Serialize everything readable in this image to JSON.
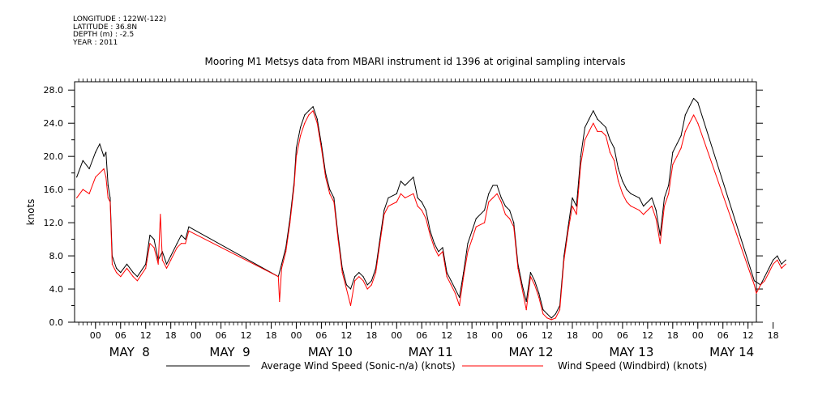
{
  "meta": {
    "longitude": "LONGITUDE : 122W(-122)",
    "latitude": "LATITUDE : 36.8N",
    "depth": "DEPTH (m) : -2.5",
    "year": "YEAR : 2011"
  },
  "chart_data": {
    "type": "line",
    "title": "Mooring M1 Metsys data from MBARI instrument id 1396 at original sampling intervals",
    "xlabel": "",
    "ylabel": "knots",
    "ylim": [
      0,
      29
    ],
    "y_ticks": [
      "0.0",
      "4.0",
      "8.0",
      "12.0",
      "16.0",
      "20.0",
      "24.0",
      "28.0"
    ],
    "x_range_hours": [
      -5,
      158
    ],
    "hour_ticks": [
      "00",
      "06",
      "12",
      "18",
      "00",
      "06",
      "12",
      "18",
      "00",
      "06",
      "12",
      "18",
      "00",
      "06",
      "12",
      "18",
      "00",
      "06",
      "12",
      "18",
      "00",
      "06",
      "12",
      "18",
      "00",
      "06",
      "12",
      "18"
    ],
    "day_labels": [
      "MAY  8",
      "MAY  9",
      "MAY 10",
      "MAY 11",
      "MAY 12",
      "MAY 13",
      "MAY 14"
    ],
    "grid": false,
    "legend_position": "bottom",
    "series": [
      {
        "name": "Average Wind Speed (Sonic-n/a) (knots)",
        "color": "#000000",
        "points": [
          [
            -4.5,
            17.5
          ],
          [
            -3,
            19.5
          ],
          [
            -1.5,
            18.5
          ],
          [
            0,
            20.5
          ],
          [
            1,
            21.5
          ],
          [
            2,
            20.0
          ],
          [
            2.5,
            20.5
          ],
          [
            3,
            16.5
          ],
          [
            3.5,
            15.0
          ],
          [
            4,
            8.0
          ],
          [
            5,
            6.5
          ],
          [
            6,
            6.0
          ],
          [
            7.5,
            7.0
          ],
          [
            9,
            6.0
          ],
          [
            10,
            5.5
          ],
          [
            12,
            7.0
          ],
          [
            13,
            10.5
          ],
          [
            14,
            10.0
          ],
          [
            15,
            7.5
          ],
          [
            16,
            8.5
          ],
          [
            17,
            7.0
          ],
          [
            18,
            8.0
          ],
          [
            19.5,
            9.5
          ],
          [
            20.5,
            10.5
          ],
          [
            21.5,
            10.0
          ],
          [
            22.3,
            11.5
          ],
          [
            43.7,
            5.5
          ],
          [
            44.5,
            7.0
          ],
          [
            45.5,
            9.0
          ],
          [
            46.5,
            12.5
          ],
          [
            47.5,
            17.0
          ],
          [
            48,
            21.0
          ],
          [
            49,
            23.5
          ],
          [
            50,
            25.0
          ],
          [
            51,
            25.5
          ],
          [
            52,
            26.0
          ],
          [
            53,
            24.5
          ],
          [
            54,
            21.5
          ],
          [
            55,
            18.0
          ],
          [
            56,
            16.0
          ],
          [
            57,
            15.0
          ],
          [
            58,
            10.5
          ],
          [
            59,
            6.5
          ],
          [
            60,
            4.5
          ],
          [
            61,
            4.0
          ],
          [
            62,
            5.5
          ],
          [
            63,
            6.0
          ],
          [
            64,
            5.5
          ],
          [
            65,
            4.5
          ],
          [
            66,
            5.0
          ],
          [
            67,
            6.5
          ],
          [
            68,
            10.0
          ],
          [
            69,
            13.5
          ],
          [
            70,
            15.0
          ],
          [
            72,
            15.5
          ],
          [
            73,
            17.0
          ],
          [
            74,
            16.5
          ],
          [
            76,
            17.5
          ],
          [
            77,
            15.0
          ],
          [
            78,
            14.5
          ],
          [
            79,
            13.5
          ],
          [
            80,
            11.0
          ],
          [
            81,
            9.5
          ],
          [
            82,
            8.5
          ],
          [
            83,
            9.0
          ],
          [
            84,
            6.0
          ],
          [
            85,
            5.0
          ],
          [
            86,
            4.0
          ],
          [
            87,
            3.0
          ],
          [
            88,
            6.0
          ],
          [
            89,
            9.5
          ],
          [
            90,
            11.0
          ],
          [
            91,
            12.5
          ],
          [
            93,
            13.5
          ],
          [
            94,
            15.5
          ],
          [
            95,
            16.5
          ],
          [
            96,
            16.5
          ],
          [
            97,
            15.0
          ],
          [
            98,
            14.0
          ],
          [
            99,
            13.5
          ],
          [
            100,
            12.0
          ],
          [
            101,
            7.0
          ],
          [
            102,
            4.5
          ],
          [
            103,
            2.5
          ],
          [
            104,
            6.0
          ],
          [
            105,
            5.0
          ],
          [
            106,
            3.5
          ],
          [
            107,
            1.5
          ],
          [
            108,
            1.0
          ],
          [
            109,
            0.5
          ],
          [
            110,
            1.0
          ],
          [
            111,
            2.0
          ],
          [
            112,
            8.0
          ],
          [
            113,
            11.5
          ],
          [
            114,
            15.0
          ],
          [
            115,
            14.0
          ],
          [
            116,
            20.0
          ],
          [
            117,
            23.5
          ],
          [
            118,
            24.5
          ],
          [
            119,
            25.5
          ],
          [
            120,
            24.5
          ],
          [
            121,
            24.0
          ],
          [
            122,
            23.5
          ],
          [
            123,
            22.0
          ],
          [
            124,
            21.0
          ],
          [
            125,
            18.5
          ],
          [
            126,
            17.0
          ],
          [
            127,
            16.0
          ],
          [
            128,
            15.5
          ],
          [
            130,
            15.0
          ],
          [
            131,
            14.0
          ],
          [
            133,
            15.0
          ],
          [
            134,
            13.5
          ],
          [
            135,
            10.5
          ],
          [
            136,
            15.0
          ],
          [
            137,
            16.5
          ],
          [
            138,
            20.5
          ],
          [
            139,
            21.5
          ],
          [
            140,
            22.5
          ],
          [
            141,
            25.0
          ],
          [
            142,
            26.0
          ],
          [
            143,
            27.0
          ],
          [
            144,
            26.5
          ],
          [
            157.5,
            5.0
          ],
          [
            159,
            4.5
          ],
          [
            160,
            5.5
          ],
          [
            161,
            6.5
          ],
          [
            162,
            7.5
          ],
          [
            163,
            8.0
          ],
          [
            164,
            7.0
          ],
          [
            165,
            7.5
          ]
        ]
      },
      {
        "name": "Wind Speed (Windbird) (knots)",
        "color": "#ff0000",
        "points": [
          [
            -4.5,
            15.0
          ],
          [
            -3,
            16.0
          ],
          [
            -1.5,
            15.5
          ],
          [
            0,
            17.5
          ],
          [
            1,
            18.0
          ],
          [
            2,
            18.5
          ],
          [
            2.5,
            17.5
          ],
          [
            3,
            15.0
          ],
          [
            3.5,
            14.5
          ],
          [
            4,
            7.0
          ],
          [
            5,
            6.0
          ],
          [
            6,
            5.5
          ],
          [
            7.5,
            6.5
          ],
          [
            9,
            5.5
          ],
          [
            10,
            5.0
          ],
          [
            12,
            6.5
          ],
          [
            13,
            9.5
          ],
          [
            14,
            9.0
          ],
          [
            15,
            7.0
          ],
          [
            15.5,
            13.0
          ],
          [
            16,
            7.5
          ],
          [
            17,
            6.5
          ],
          [
            18,
            7.5
          ],
          [
            19.5,
            9.0
          ],
          [
            20.5,
            9.5
          ],
          [
            21.5,
            9.5
          ],
          [
            22.3,
            11.0
          ],
          [
            43.7,
            5.5
          ],
          [
            44.0,
            2.5
          ],
          [
            44.5,
            6.5
          ],
          [
            45.5,
            8.5
          ],
          [
            46.5,
            12.0
          ],
          [
            47.5,
            16.5
          ],
          [
            48,
            20.0
          ],
          [
            49,
            22.5
          ],
          [
            50,
            24.0
          ],
          [
            51,
            25.0
          ],
          [
            52,
            25.5
          ],
          [
            53,
            24.0
          ],
          [
            54,
            21.0
          ],
          [
            55,
            17.5
          ],
          [
            56,
            15.5
          ],
          [
            57,
            14.5
          ],
          [
            58,
            10.0
          ],
          [
            59,
            6.0
          ],
          [
            60,
            4.0
          ],
          [
            61,
            2.0
          ],
          [
            62,
            5.0
          ],
          [
            63,
            5.5
          ],
          [
            64,
            5.0
          ],
          [
            65,
            4.0
          ],
          [
            66,
            4.5
          ],
          [
            67,
            6.0
          ],
          [
            68,
            9.5
          ],
          [
            69,
            13.0
          ],
          [
            70,
            14.0
          ],
          [
            72,
            14.5
          ],
          [
            73,
            15.5
          ],
          [
            74,
            15.0
          ],
          [
            76,
            15.5
          ],
          [
            77,
            14.0
          ],
          [
            78,
            13.5
          ],
          [
            79,
            12.5
          ],
          [
            80,
            10.5
          ],
          [
            81,
            9.0
          ],
          [
            82,
            8.0
          ],
          [
            83,
            8.5
          ],
          [
            84,
            5.5
          ],
          [
            85,
            4.5
          ],
          [
            86,
            3.5
          ],
          [
            87,
            2.0
          ],
          [
            88,
            5.5
          ],
          [
            89,
            8.5
          ],
          [
            90,
            10.0
          ],
          [
            91,
            11.5
          ],
          [
            93,
            12.0
          ],
          [
            94,
            14.5
          ],
          [
            95,
            15.0
          ],
          [
            96,
            15.5
          ],
          [
            97,
            14.5
          ],
          [
            98,
            13.0
          ],
          [
            99,
            12.5
          ],
          [
            100,
            11.5
          ],
          [
            101,
            6.5
          ],
          [
            102,
            4.0
          ],
          [
            103,
            1.5
          ],
          [
            104,
            5.5
          ],
          [
            105,
            4.5
          ],
          [
            106,
            3.0
          ],
          [
            107,
            1.0
          ],
          [
            108,
            0.5
          ],
          [
            109,
            0.3
          ],
          [
            110,
            0.5
          ],
          [
            111,
            1.5
          ],
          [
            112,
            7.5
          ],
          [
            113,
            11.0
          ],
          [
            114,
            14.0
          ],
          [
            115,
            13.0
          ],
          [
            116,
            19.0
          ],
          [
            117,
            22.0
          ],
          [
            118,
            23.0
          ],
          [
            119,
            24.0
          ],
          [
            120,
            23.0
          ],
          [
            121,
            23.0
          ],
          [
            122,
            22.5
          ],
          [
            123,
            20.5
          ],
          [
            124,
            19.5
          ],
          [
            125,
            17.0
          ],
          [
            126,
            15.5
          ],
          [
            127,
            14.5
          ],
          [
            128,
            14.0
          ],
          [
            130,
            13.5
          ],
          [
            131,
            13.0
          ],
          [
            133,
            14.0
          ],
          [
            134,
            12.5
          ],
          [
            135,
            9.5
          ],
          [
            136,
            14.0
          ],
          [
            137,
            15.5
          ],
          [
            138,
            19.0
          ],
          [
            139,
            20.0
          ],
          [
            140,
            21.0
          ],
          [
            141,
            23.0
          ],
          [
            142,
            24.0
          ],
          [
            143,
            25.0
          ],
          [
            144,
            24.0
          ],
          [
            157.5,
            4.5
          ],
          [
            158,
            3.5
          ],
          [
            159,
            4.5
          ],
          [
            160,
            5.0
          ],
          [
            161,
            6.0
          ],
          [
            162,
            7.0
          ],
          [
            163,
            7.5
          ],
          [
            164,
            6.5
          ],
          [
            165,
            7.0
          ]
        ]
      }
    ]
  }
}
